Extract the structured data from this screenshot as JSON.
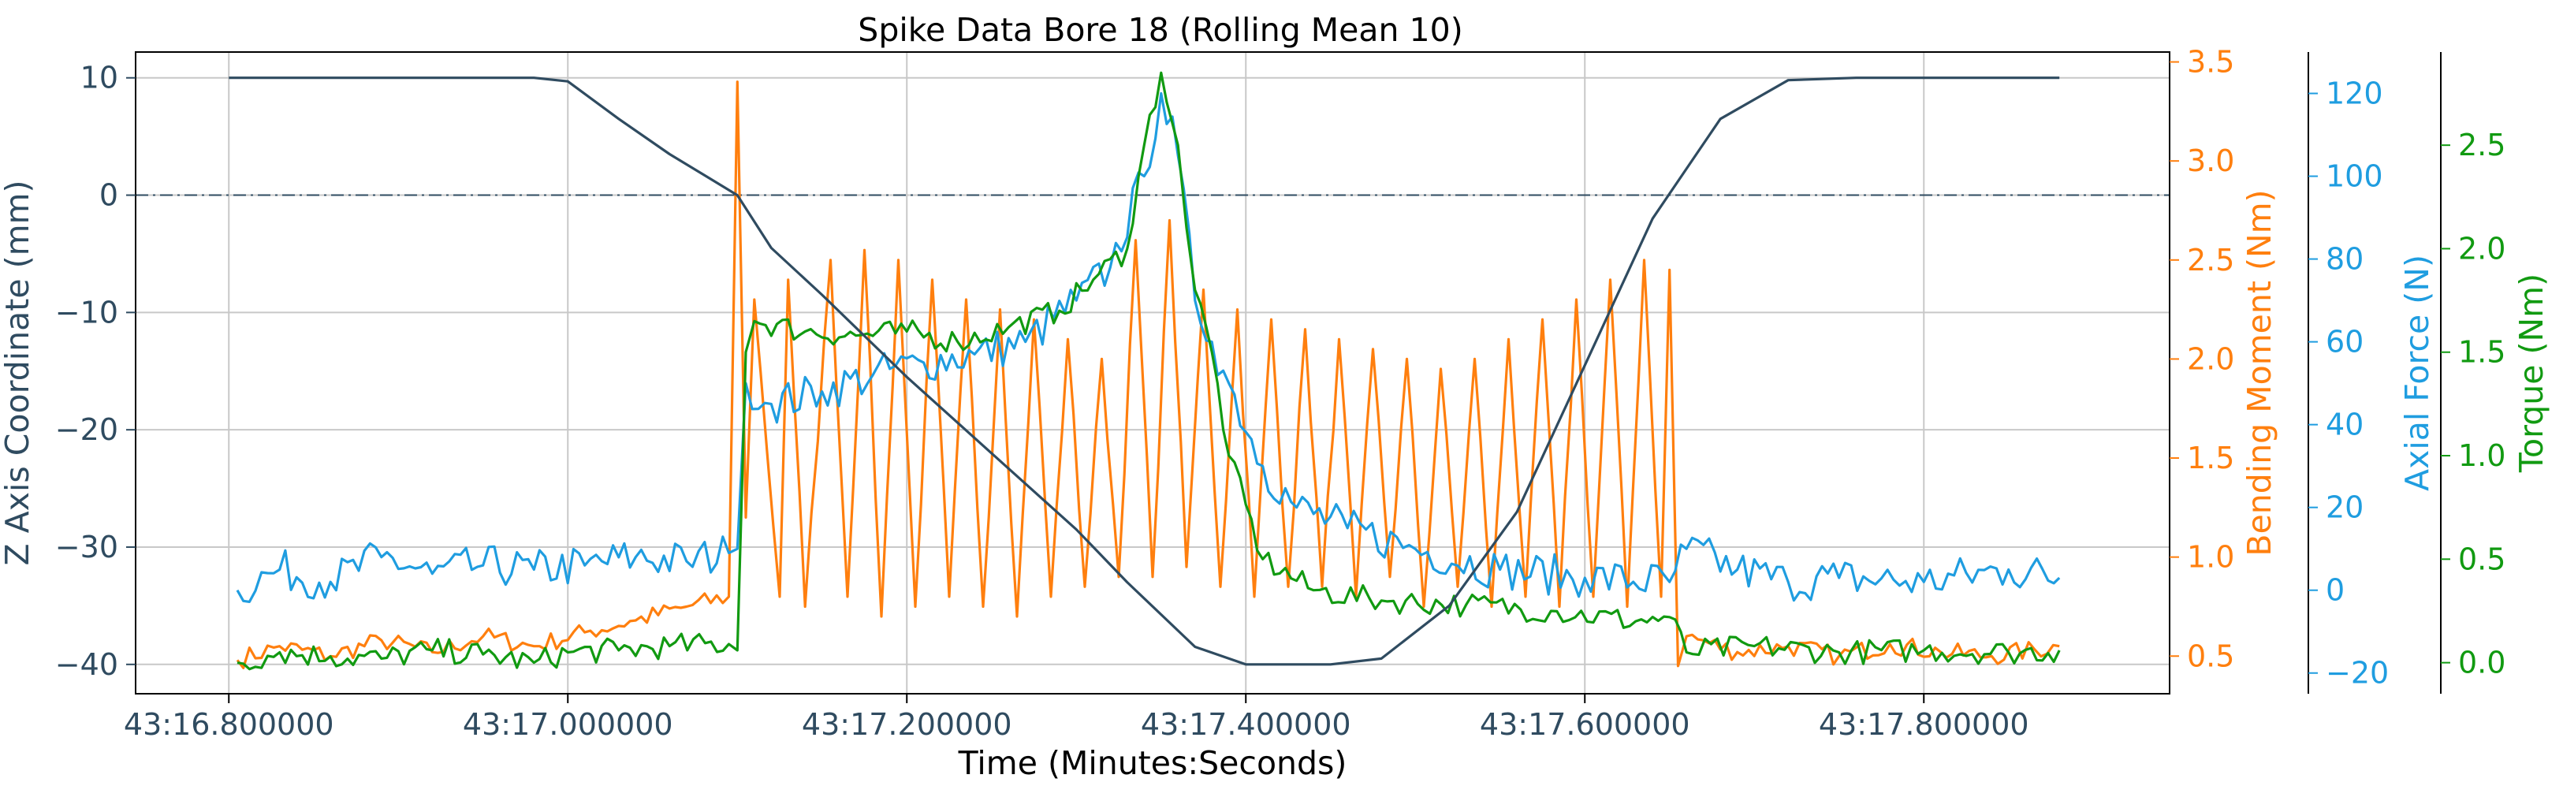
{
  "chart_data": {
    "type": "line",
    "title": "Spike Data Bore 18 (Rolling Mean 10)",
    "xlabel": "Time (Minutes:Seconds)",
    "x_unit": "seconds after 43:16.000000",
    "xlim": [
      0.745,
      1.945
    ],
    "x_ticks": [
      {
        "value": 0.8,
        "label": "43:16.800000"
      },
      {
        "value": 1.0,
        "label": "43:17.000000"
      },
      {
        "value": 1.2,
        "label": "43:17.200000"
      },
      {
        "value": 1.4,
        "label": "43:17.400000"
      },
      {
        "value": 1.6,
        "label": "43:17.600000"
      },
      {
        "value": 1.8,
        "label": "43:17.800000"
      }
    ],
    "grid": true,
    "reference_line": {
      "axis": "z",
      "value": 0,
      "style": "dash-dot"
    },
    "axes": {
      "z": {
        "label": "Z Axis Coordinate (mm)",
        "color": "#2f4b60",
        "ylim": [
          -42.5,
          12.2
        ],
        "ticks": [
          "10",
          "0",
          "−10",
          "−20",
          "−30",
          "−40"
        ],
        "tick_values": [
          10,
          0,
          -10,
          -20,
          -30,
          -40
        ]
      },
      "bending": {
        "label": "Bending Moment (Nm)",
        "color": "#ff7f0e",
        "ylim": [
          0.31,
          3.55
        ],
        "ticks": [
          "0.5",
          "1.0",
          "1.5",
          "2.0",
          "2.5",
          "3.0",
          "3.5"
        ],
        "tick_values": [
          0.5,
          1.0,
          1.5,
          2.0,
          2.5,
          3.0,
          3.5
        ]
      },
      "axial": {
        "label": "Axial Force (N)",
        "color": "#1f9de0",
        "ylim": [
          -25,
          130
        ],
        "ticks": [
          "−20",
          "0",
          "20",
          "40",
          "60",
          "80",
          "100",
          "120"
        ],
        "tick_values": [
          -20,
          0,
          20,
          40,
          60,
          80,
          100,
          120
        ]
      },
      "torque": {
        "label": "Torque (Nm)",
        "color": "#119a11",
        "ylim": [
          -0.15,
          2.95
        ],
        "ticks": [
          "0.0",
          "0.5",
          "1.0",
          "1.5",
          "2.0",
          "2.5"
        ],
        "tick_values": [
          0.0,
          0.5,
          1.0,
          1.5,
          2.0,
          2.5
        ]
      }
    },
    "series": [
      {
        "axis": "z",
        "color": "#2f4b60",
        "x": [
          0.8,
          0.98,
          1.0,
          1.03,
          1.06,
          1.1,
          1.12,
          1.15,
          1.2,
          1.25,
          1.3,
          1.33,
          1.37,
          1.4,
          1.45,
          1.48,
          1.52,
          1.56,
          1.6,
          1.64,
          1.68,
          1.72,
          1.76,
          1.8,
          1.88
        ],
        "y": [
          10,
          10,
          9.7,
          6.5,
          3.5,
          0,
          -4.5,
          -8.5,
          -15.5,
          -22,
          -28.5,
          -33,
          -38.5,
          -40,
          -40,
          -39.5,
          -35,
          -27,
          -14.5,
          -2,
          6.5,
          9.8,
          10,
          10,
          10
        ]
      },
      {
        "axis": "bending",
        "color": "#ff7f0e",
        "x": [
          0.805,
          0.83,
          0.86,
          0.89,
          0.92,
          0.95,
          0.98,
          1.01,
          1.04,
          1.07,
          1.095,
          1.1,
          1.105,
          1.11,
          1.125,
          1.13,
          1.14,
          1.155,
          1.165,
          1.175,
          1.185,
          1.195,
          1.205,
          1.215,
          1.225,
          1.235,
          1.245,
          1.255,
          1.265,
          1.275,
          1.285,
          1.295,
          1.305,
          1.315,
          1.325,
          1.335,
          1.345,
          1.355,
          1.365,
          1.375,
          1.385,
          1.395,
          1.405,
          1.415,
          1.425,
          1.435,
          1.445,
          1.455,
          1.465,
          1.475,
          1.485,
          1.495,
          1.505,
          1.515,
          1.525,
          1.535,
          1.545,
          1.555,
          1.565,
          1.575,
          1.585,
          1.595,
          1.605,
          1.615,
          1.625,
          1.635,
          1.645,
          1.65,
          1.655,
          1.66,
          1.69,
          1.72,
          1.75,
          1.78,
          1.81,
          1.84,
          1.88
        ],
        "y": [
          0.48,
          0.55,
          0.5,
          0.58,
          0.52,
          0.6,
          0.55,
          0.62,
          0.68,
          0.75,
          0.8,
          3.4,
          1.2,
          2.3,
          0.8,
          2.4,
          0.75,
          2.5,
          0.8,
          2.55,
          0.7,
          2.5,
          0.75,
          2.4,
          0.8,
          2.3,
          0.75,
          2.25,
          0.7,
          2.2,
          0.8,
          2.1,
          0.85,
          2.0,
          0.9,
          2.6,
          0.9,
          2.7,
          0.95,
          2.35,
          0.85,
          2.25,
          0.8,
          2.2,
          0.85,
          2.15,
          0.85,
          2.1,
          0.8,
          2.05,
          0.9,
          2.0,
          0.75,
          1.95,
          0.85,
          2.0,
          0.75,
          2.1,
          0.8,
          2.2,
          0.75,
          2.3,
          0.8,
          2.4,
          0.75,
          2.5,
          0.8,
          2.45,
          0.45,
          0.6,
          0.52,
          0.55,
          0.5,
          0.56,
          0.52,
          0.5,
          0.55
        ]
      },
      {
        "axis": "axial",
        "color": "#1f9de0",
        "x": [
          0.805,
          0.83,
          0.86,
          0.89,
          0.92,
          0.95,
          0.98,
          1.01,
          1.04,
          1.07,
          1.095,
          1.1,
          1.105,
          1.12,
          1.15,
          1.18,
          1.21,
          1.24,
          1.27,
          1.3,
          1.32,
          1.34,
          1.35,
          1.36,
          1.37,
          1.38,
          1.39,
          1.41,
          1.43,
          1.46,
          1.5,
          1.55,
          1.6,
          1.65,
          1.66,
          1.69,
          1.72,
          1.75,
          1.8,
          1.85,
          1.88
        ],
        "y": [
          0,
          5,
          2,
          8,
          4,
          6,
          5,
          6,
          8,
          7,
          9,
          10,
          50,
          45,
          48,
          52,
          55,
          57,
          60,
          70,
          78,
          100,
          120,
          105,
          70,
          60,
          50,
          30,
          20,
          15,
          10,
          5,
          3,
          2,
          10,
          5,
          2,
          3,
          2,
          5,
          3
        ]
      },
      {
        "axis": "torque",
        "color": "#119a11",
        "x": [
          0.805,
          0.83,
          0.86,
          0.89,
          0.92,
          0.95,
          0.98,
          1.0,
          1.03,
          1.06,
          1.095,
          1.1,
          1.105,
          1.11,
          1.14,
          1.17,
          1.2,
          1.23,
          1.26,
          1.29,
          1.31,
          1.33,
          1.34,
          1.35,
          1.36,
          1.365,
          1.37,
          1.38,
          1.39,
          1.41,
          1.44,
          1.48,
          1.53,
          1.58,
          1.63,
          1.65,
          1.66,
          1.7,
          1.75,
          1.8,
          1.85,
          1.88
        ],
        "y": [
          0.0,
          0.05,
          0.03,
          0.02,
          0.06,
          0.04,
          0.0,
          0.05,
          0.06,
          0.08,
          0.09,
          0.06,
          1.5,
          1.65,
          1.6,
          1.58,
          1.6,
          1.55,
          1.62,
          1.7,
          1.85,
          2.0,
          2.5,
          2.85,
          2.5,
          2.1,
          1.8,
          1.5,
          1.0,
          0.5,
          0.35,
          0.3,
          0.28,
          0.25,
          0.2,
          0.22,
          0.05,
          0.08,
          0.05,
          0.06,
          0.05,
          0.06
        ]
      }
    ]
  }
}
